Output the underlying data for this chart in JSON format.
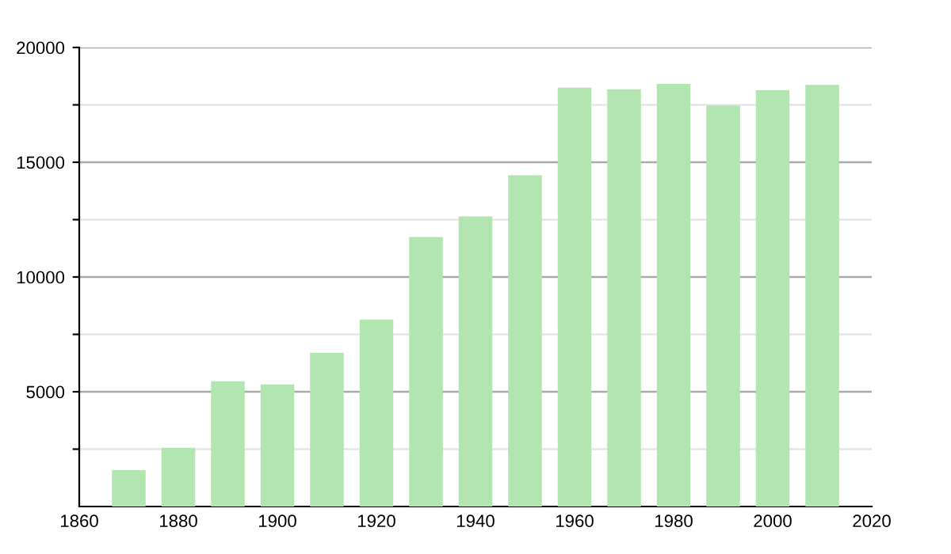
{
  "chart_data": {
    "type": "bar",
    "x": [
      1870,
      1880,
      1890,
      1900,
      1910,
      1920,
      1930,
      1940,
      1950,
      1960,
      1970,
      1980,
      1990,
      2000,
      2010
    ],
    "values": [
      1590,
      2560,
      5460,
      5320,
      6700,
      8150,
      11740,
      12640,
      14430,
      18250,
      18180,
      18410,
      17470,
      18140,
      18370
    ],
    "color": "#b3e5b0",
    "xlim": [
      1860,
      2020
    ],
    "xticks": [
      1860,
      1880,
      1900,
      1920,
      1940,
      1960,
      1980,
      2000,
      2020
    ],
    "ylim": [
      0,
      20000
    ],
    "yticks": [
      {
        "value": 2500,
        "label": null
      },
      5000,
      {
        "value": 7500,
        "label": null
      },
      10000,
      {
        "value": 12500,
        "label": null
      },
      15000,
      {
        "value": 17500,
        "label": null
      },
      20000
    ],
    "grid": "y"
  }
}
